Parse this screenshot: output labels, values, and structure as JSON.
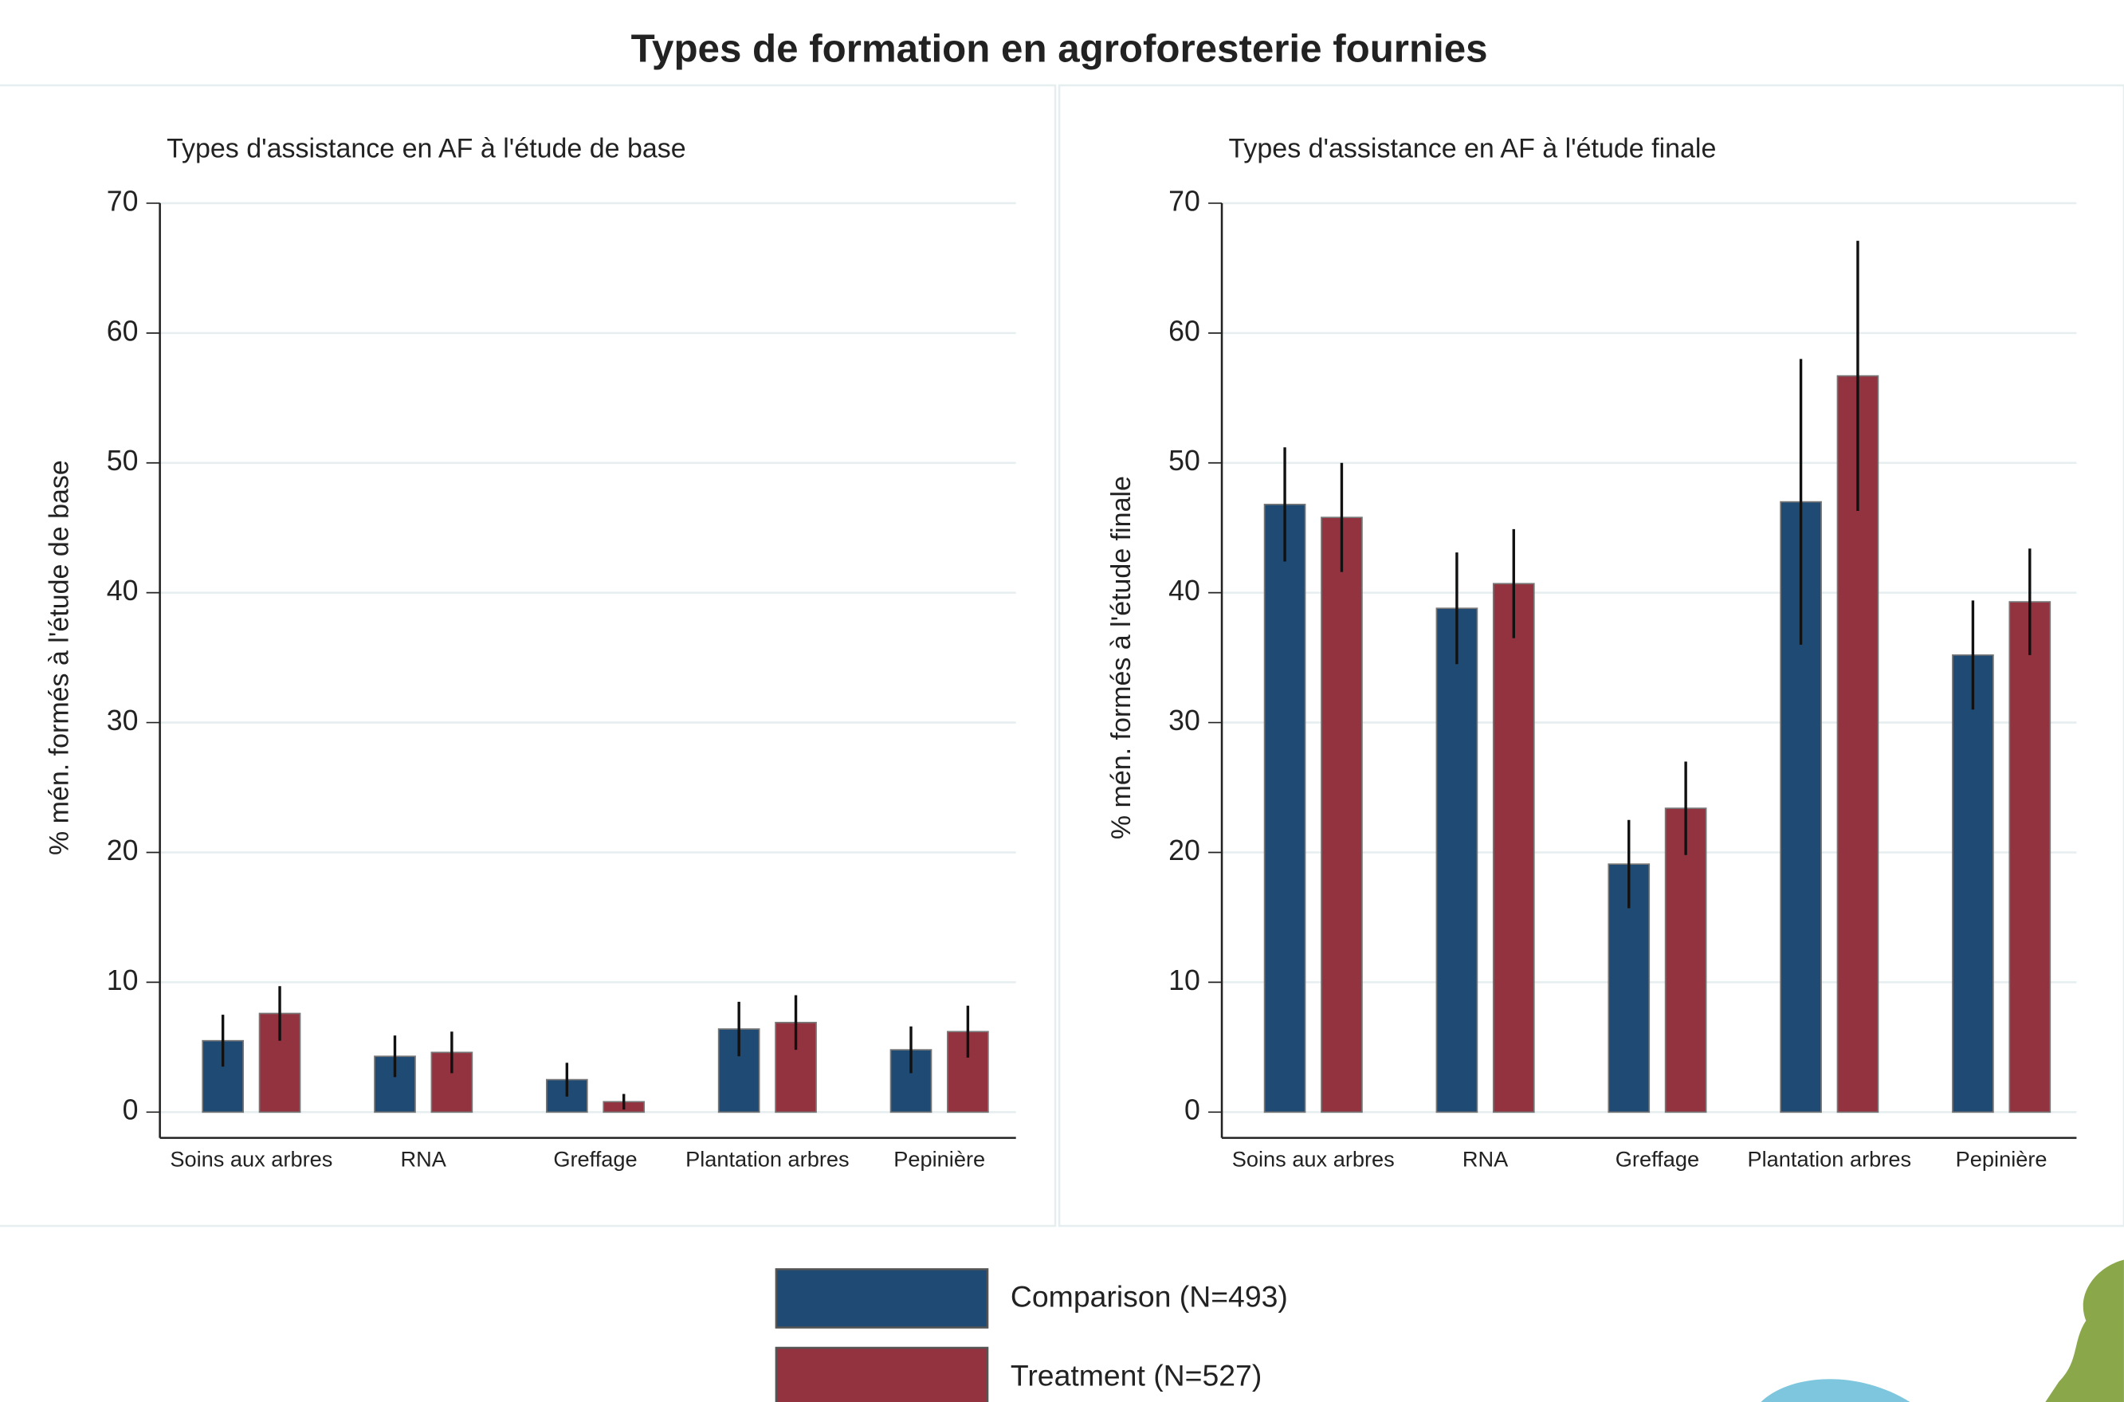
{
  "title": "Types de formation en agroforesterie fournies",
  "chart_data": [
    {
      "type": "bar",
      "title": "Types d'assistance en AF à l'étude de base",
      "y_label": "% mén. formés à l'étude de base",
      "categories": [
        "Soins aux arbres",
        "RNA",
        "Greffage",
        "Plantation arbres",
        "Pepinière"
      ],
      "series": [
        {
          "name": "Comparison (N=493)",
          "color": "#1f4a73",
          "values": [
            5.5,
            4.3,
            2.5,
            6.4,
            4.8
          ],
          "errors": [
            2.0,
            1.6,
            1.3,
            2.1,
            1.8
          ]
        },
        {
          "name": "Treatment (N=527)",
          "color": "#93333f",
          "values": [
            7.6,
            4.6,
            0.8,
            6.9,
            6.2
          ],
          "errors": [
            2.1,
            1.6,
            0.6,
            2.1,
            2.0
          ]
        }
      ],
      "ylim": [
        0,
        70
      ],
      "yticks": [
        0,
        10,
        20,
        30,
        40,
        50,
        60,
        70
      ],
      "grid": true
    },
    {
      "type": "bar",
      "title": "Types d'assistance en AF à l'étude finale",
      "y_label": "% mén. formés à l'étude finale",
      "categories": [
        "Soins aux arbres",
        "RNA",
        "Greffage",
        "Plantation arbres",
        "Pepinière"
      ],
      "series": [
        {
          "color": "#1f4a73",
          "values": [
            46.8,
            38.8,
            19.1,
            47.0,
            35.2
          ],
          "errors": [
            4.4,
            4.3,
            3.4,
            11.0,
            4.2
          ]
        },
        {
          "color": "#93333f",
          "values": [
            45.8,
            40.7,
            23.4,
            56.7,
            39.3
          ],
          "errors": [
            4.2,
            4.2,
            3.6,
            10.4,
            4.1
          ]
        }
      ],
      "ylim": [
        0,
        70
      ],
      "yticks": [
        0,
        10,
        20,
        30,
        40,
        50,
        60,
        70
      ],
      "grid": true
    }
  ]
}
